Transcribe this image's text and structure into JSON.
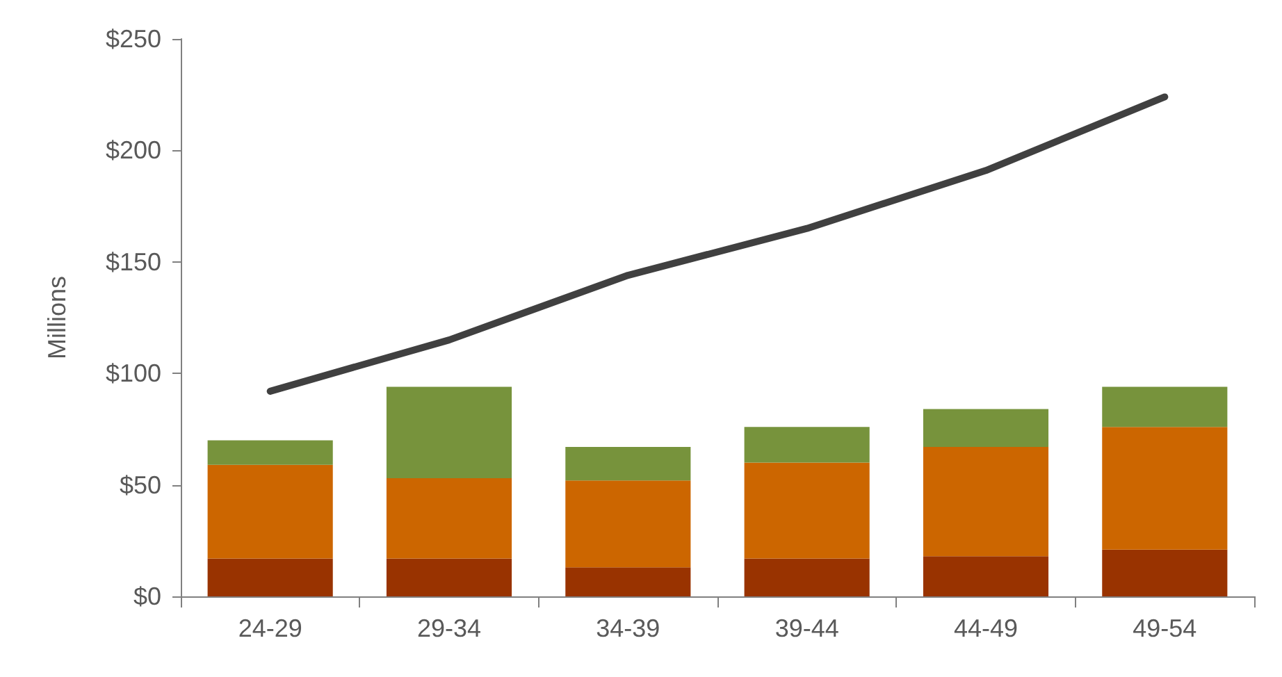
{
  "chart_data": {
    "type": "bar",
    "stacked": true,
    "ylabel": "Millions",
    "categories": [
      "24-29",
      "29-34",
      "34-39",
      "39-44",
      "44-49",
      "49-54"
    ],
    "ylim": [
      0,
      250
    ],
    "yticks": [
      {
        "value": 0,
        "label": "$0"
      },
      {
        "value": 50,
        "label": "$50"
      },
      {
        "value": 100,
        "label": "$100"
      },
      {
        "value": 150,
        "label": "$150"
      },
      {
        "value": 200,
        "label": "$200"
      },
      {
        "value": 250,
        "label": "$250"
      }
    ],
    "series": [
      {
        "color": "#993300",
        "values": [
          17,
          17,
          13,
          17,
          18,
          21
        ]
      },
      {
        "color": "#cc6600",
        "values": [
          42,
          36,
          39,
          43,
          49,
          55
        ]
      },
      {
        "color": "#77933c",
        "values": [
          11,
          41,
          15,
          16,
          17,
          18
        ]
      },
      {
        "type": "line",
        "color": "#404040",
        "values": [
          92,
          115,
          144,
          165,
          191,
          224
        ]
      }
    ]
  }
}
